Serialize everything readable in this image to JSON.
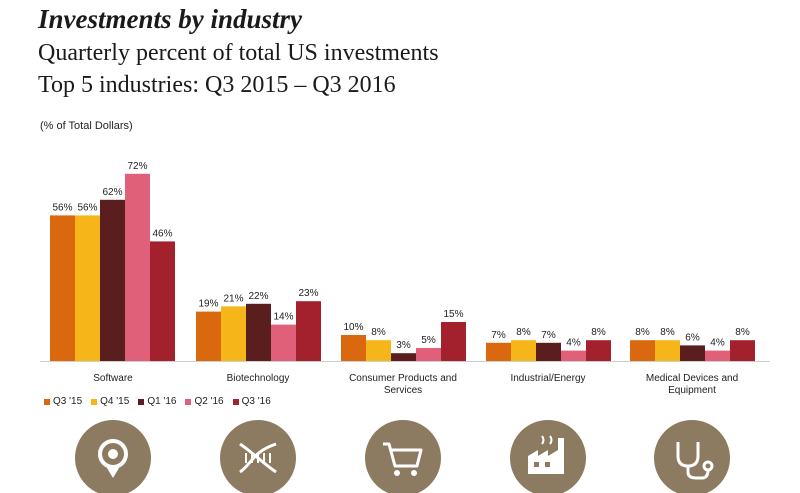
{
  "header": {
    "title": "Investments by industry",
    "subtitle1": "Quarterly percent of total US investments",
    "subtitle2": "Top 5 industries: Q3 2015 – Q3 2016",
    "unit_note": "(% of Total Dollars)"
  },
  "colors": {
    "Q3 '15": "#d9680f",
    "Q4 '15": "#f6b61a",
    "Q1 '16": "#5a1e1e",
    "Q2 '16": "#e0607a",
    "Q3 '16": "#a3202d",
    "icon_bg": "#8c7b60"
  },
  "chart_data": {
    "type": "bar",
    "title": "Investments by industry",
    "ylabel": "(% of Total Dollars)",
    "categories": [
      [
        "Software"
      ],
      [
        "Biotechnology"
      ],
      [
        "Consumer Products and",
        "Services"
      ],
      [
        "Industrial/Energy"
      ],
      [
        "Medical Devices and",
        "Equipment"
      ]
    ],
    "series": [
      {
        "name": "Q3 '15",
        "values": [
          56,
          19,
          10,
          7,
          8
        ]
      },
      {
        "name": "Q4 '15",
        "values": [
          56,
          21,
          8,
          8,
          8
        ]
      },
      {
        "name": "Q1 '16",
        "values": [
          62,
          22,
          3,
          7,
          6
        ]
      },
      {
        "name": "Q2 '16",
        "values": [
          72,
          14,
          5,
          4,
          4
        ]
      },
      {
        "name": "Q3 '16",
        "values": [
          46,
          23,
          15,
          8,
          8
        ]
      }
    ],
    "ylim": [
      0,
      80
    ],
    "grid": false,
    "legend_position": "bottom-left",
    "value_labels": true
  },
  "icons": [
    "medal-icon",
    "dna-icon",
    "shopping-cart-icon",
    "factory-icon",
    "stethoscope-icon"
  ]
}
